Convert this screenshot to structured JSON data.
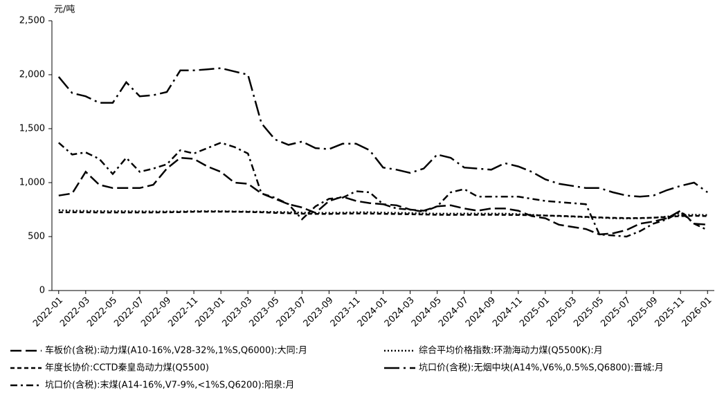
{
  "chart_data": {
    "type": "line",
    "y_label": "元/吨",
    "categories": [
      "2022-01",
      null,
      "2022-03",
      null,
      "2022-05",
      null,
      "2022-07",
      null,
      "2022-09",
      null,
      "2022-11",
      null,
      "2023-01",
      null,
      "2023-03",
      null,
      "2023-05",
      null,
      "2023-07",
      null,
      "2023-09",
      null,
      "2023-11",
      null,
      "2024-01",
      null,
      "2024-03",
      null,
      "2024-05",
      null,
      "2024-07",
      null,
      "2024-09",
      null,
      "2024-11",
      null,
      "2025-01",
      null,
      "2025-03",
      null,
      "2025-05",
      null,
      "2025-07",
      null,
      "2025-09",
      null,
      "2025-11",
      null,
      "2026-01"
    ],
    "ylim": [
      0,
      2500
    ],
    "yticks": [
      0,
      500,
      {
        "value": 1000,
        "label": "1,000"
      },
      {
        "value": 1500,
        "label": "1,500"
      },
      {
        "value": 2000,
        "label": "2,000"
      },
      {
        "value": 2500,
        "label": "2,500"
      }
    ],
    "series": [
      {
        "name": "车板价(含税):动力煤(A10-16%,V28-32%,1%S,Q6000):大同:月",
        "color": "#000000",
        "dash": "16,6",
        "values": [
          880,
          900,
          1100,
          980,
          950,
          950,
          950,
          980,
          1130,
          1230,
          1220,
          1150,
          1100,
          1000,
          990,
          900,
          850,
          800,
          770,
          720,
          830,
          870,
          830,
          810,
          800,
          790,
          750,
          740,
          780,
          790,
          760,
          740,
          760,
          760,
          740,
          690,
          670,
          610,
          590,
          570,
          520,
          530,
          560,
          620,
          640,
          670,
          740,
          620,
          610
        ]
      },
      {
        "name": "综合平均价格指数:环渤海动力煤(Q5500K):月",
        "color": "#000000",
        "dash": "2,3",
        "values": [
          745,
          740,
          738,
          736,
          735,
          735,
          734,
          733,
          733,
          733,
          735,
          736,
          735,
          733,
          732,
          730,
          728,
          726,
          722,
          720,
          720,
          722,
          725,
          725,
          722,
          720,
          718,
          715,
          712,
          712,
          713,
          713,
          712,
          712,
          708,
          702,
          695,
          690,
          685,
          680,
          675,
          670,
          668,
          670,
          675,
          685,
          700,
          702,
          700
        ]
      },
      {
        "name": "年度长协价:CCTD秦皇岛动力煤(Q5500)",
        "color": "#000000",
        "dash": "6,4",
        "values": [
          725,
          725,
          725,
          724,
          724,
          724,
          724,
          724,
          725,
          727,
          730,
          731,
          731,
          730,
          728,
          725,
          720,
          716,
          712,
          710,
          710,
          712,
          714,
          713,
          711,
          709,
          707,
          705,
          702,
          701,
          702,
          702,
          702,
          701,
          700,
          698,
          695,
          692,
          688,
          683,
          678,
          674,
          672,
          672,
          675,
          682,
          690,
          692,
          690
        ]
      },
      {
        "name": "坑口价(含税):无烟中块(A14%,V6%,0.5%S,Q6800):晋城:月",
        "color": "#000000",
        "dash": "22,6,3,6",
        "values": [
          1980,
          1830,
          1800,
          1740,
          1740,
          1930,
          1800,
          1810,
          1840,
          2040,
          2040,
          2050,
          2060,
          2030,
          2000,
          1550,
          1400,
          1350,
          1380,
          1320,
          1310,
          1360,
          1360,
          1300,
          1140,
          1120,
          1090,
          1130,
          1260,
          1230,
          1140,
          1130,
          1120,
          1180,
          1150,
          1100,
          1030,
          990,
          970,
          950,
          950,
          910,
          880,
          870,
          880,
          930,
          970,
          1000,
          910
        ]
      },
      {
        "name": "坑口价(含税):末煤(A14-16%,V7-9%,<1%S,Q6200):阳泉:月",
        "color": "#000000",
        "dash": "10,5,3,5",
        "values": [
          1370,
          1260,
          1280,
          1220,
          1080,
          1230,
          1100,
          1130,
          1170,
          1300,
          1270,
          1320,
          1370,
          1330,
          1270,
          900,
          860,
          800,
          660,
          780,
          850,
          860,
          920,
          910,
          800,
          760,
          750,
          730,
          780,
          910,
          940,
          870,
          870,
          870,
          870,
          850,
          830,
          820,
          810,
          800,
          520,
          510,
          500,
          550,
          620,
          660,
          730,
          620,
          560
        ]
      }
    ]
  }
}
